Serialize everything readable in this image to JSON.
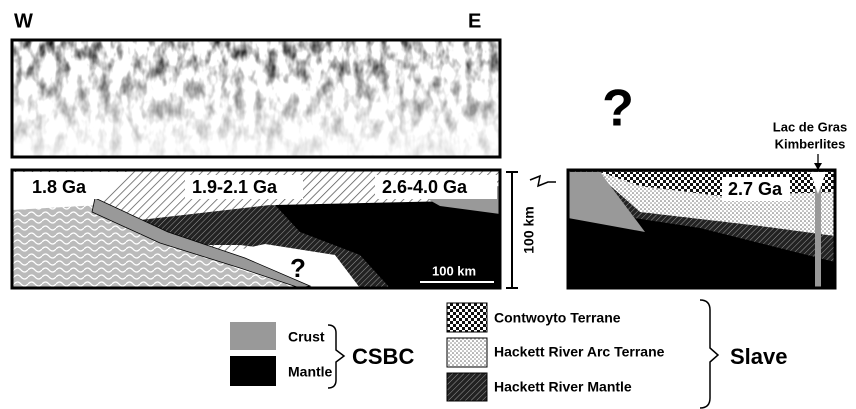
{
  "header": {
    "west": "W",
    "east": "E"
  },
  "unknown_above": "?",
  "kimberlites": {
    "lines": [
      "Lac de Gras",
      "Kimberlites"
    ]
  },
  "left_section": {
    "labels": [
      "1.8 Ga",
      "1.9-2.1 Ga",
      "2.6-4.0 Ga"
    ],
    "unknown": "?",
    "scale_bar": "100 km"
  },
  "depth_scale": "100 km",
  "right_section": {
    "label": "2.7 Ga"
  },
  "legend": {
    "csbc": {
      "items": [
        "Crust",
        "Mantle"
      ],
      "group": "CSBC"
    },
    "slave": {
      "items": [
        "Contwoyto Terrane",
        "Hackett River Arc Terrane",
        "Hackett River Mantle"
      ],
      "group": "Slave"
    }
  }
}
